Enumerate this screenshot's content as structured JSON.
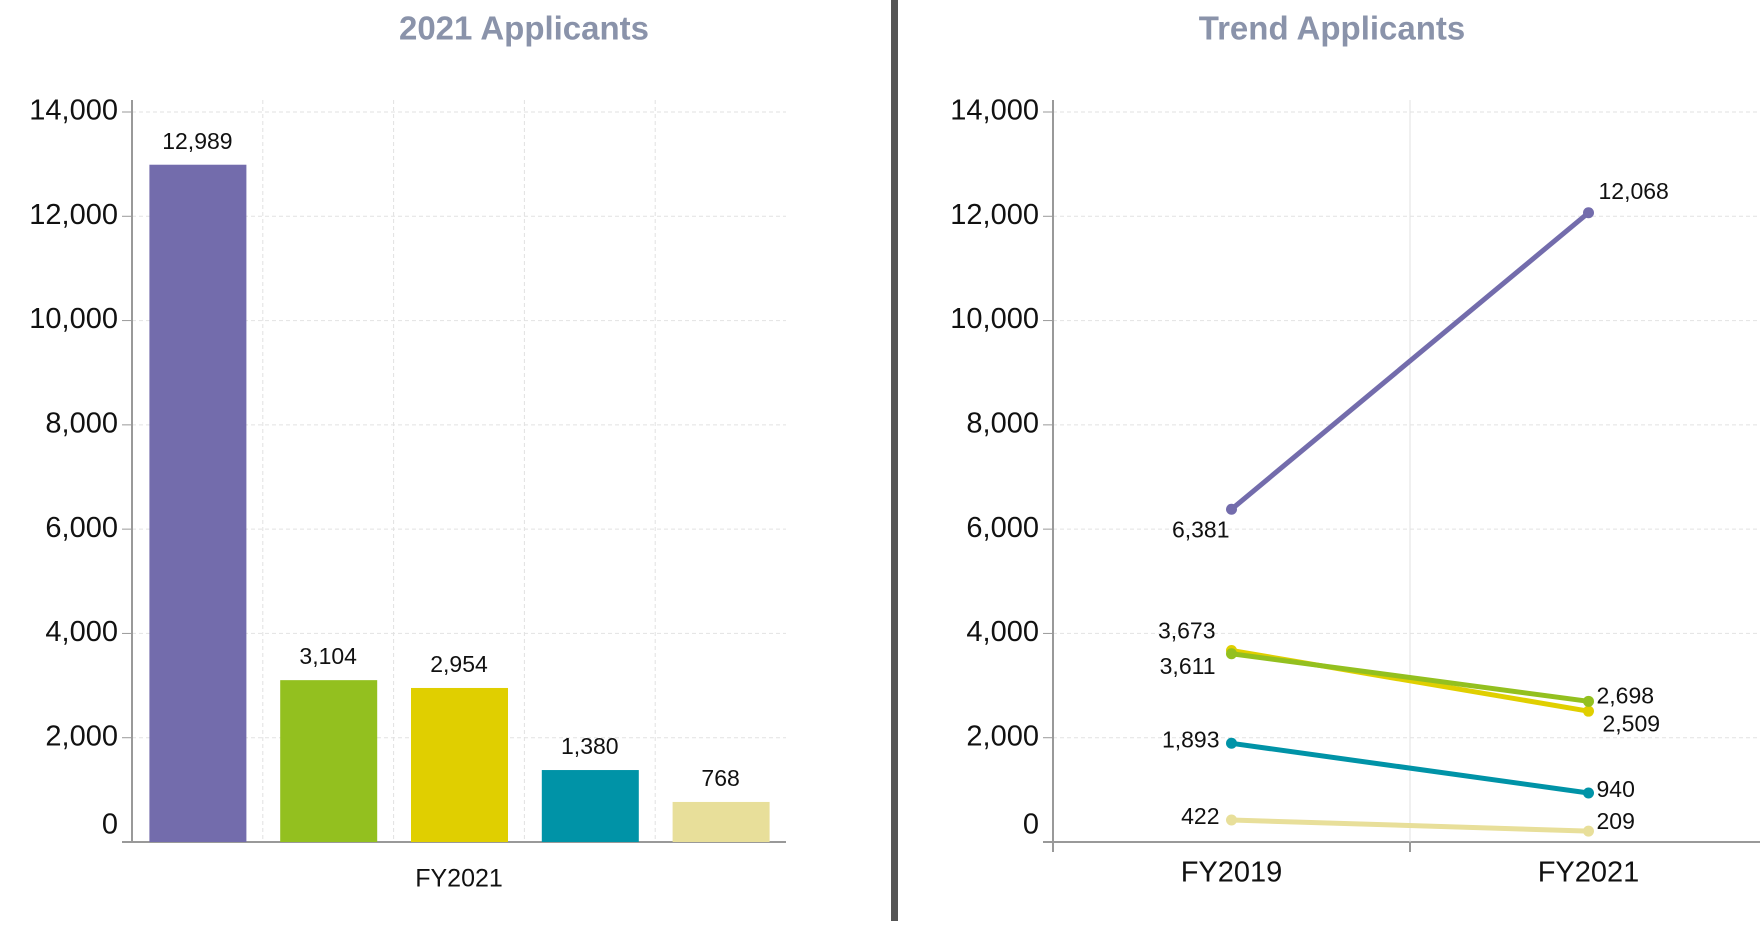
{
  "chart_data": [
    {
      "type": "bar",
      "title": "2021 Applicants",
      "categories": [
        "FY2021"
      ],
      "series": [
        {
          "color": "#736cac",
          "values": [
            12989
          ],
          "value_labels": [
            "12,989"
          ]
        },
        {
          "color": "#93c01f",
          "values": [
            3104
          ],
          "value_labels": [
            "3,104"
          ]
        },
        {
          "color": "#e0cf00",
          "values": [
            2954
          ],
          "value_labels": [
            "2,954"
          ]
        },
        {
          "color": "#0093a7",
          "values": [
            1380
          ],
          "value_labels": [
            "1,380"
          ]
        },
        {
          "color": "#e8df9a",
          "values": [
            768
          ],
          "value_labels": [
            "768"
          ]
        }
      ],
      "ylim": [
        0,
        14000
      ],
      "yticks": [
        0,
        {
          "value": 2000,
          "label": "2,000"
        },
        {
          "value": 4000,
          "label": "4,000"
        },
        {
          "value": 6000,
          "label": "6,000"
        },
        {
          "value": 8000,
          "label": "8,000"
        },
        {
          "value": 10000,
          "label": "10,000"
        },
        {
          "value": 12000,
          "label": "12,000"
        },
        {
          "value": 14000,
          "label": "14,000"
        }
      ],
      "grid": true
    },
    {
      "type": "line",
      "title": "Trend Applicants",
      "categories": [
        "FY2019",
        "FY2021"
      ],
      "series": [
        {
          "color": "#736cac",
          "values": [
            6381,
            12068
          ],
          "value_labels": [
            "6,381",
            "12,068"
          ]
        },
        {
          "color": "#e0cf00",
          "values": [
            3673,
            2509
          ],
          "value_labels": [
            "3,673",
            "2,509"
          ]
        },
        {
          "color": "#93c01f",
          "values": [
            3611,
            2698
          ],
          "value_labels": [
            "3,611",
            "2,698"
          ]
        },
        {
          "color": "#0093a7",
          "values": [
            1893,
            940
          ],
          "value_labels": [
            "1,893",
            "940"
          ]
        },
        {
          "color": "#e8df9a",
          "values": [
            422,
            209
          ],
          "value_labels": [
            "422",
            "209"
          ]
        }
      ],
      "ylim": [
        0,
        14000
      ],
      "yticks": [
        0,
        {
          "value": 2000,
          "label": "2,000"
        },
        {
          "value": 4000,
          "label": "4,000"
        },
        {
          "value": 6000,
          "label": "6,000"
        },
        {
          "value": 8000,
          "label": "8,000"
        },
        {
          "value": 10000,
          "label": "10,000"
        },
        {
          "value": 12000,
          "label": "12,000"
        },
        {
          "value": 14000,
          "label": "14,000"
        }
      ],
      "grid": true
    }
  ]
}
